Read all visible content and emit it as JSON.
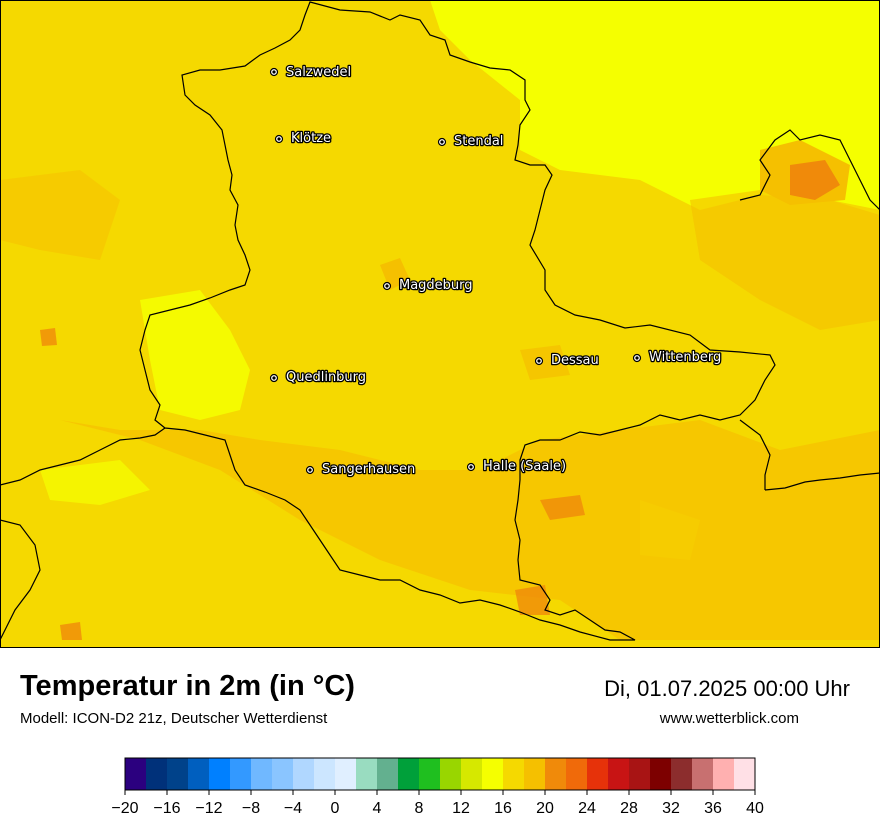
{
  "map": {
    "cities": [
      {
        "id": "salzwedel",
        "name": "Salzwedel"
      },
      {
        "id": "kloetze",
        "name": "Klötze"
      },
      {
        "id": "stendal",
        "name": "Stendal"
      },
      {
        "id": "magdeburg",
        "name": "Magdeburg"
      },
      {
        "id": "dessau",
        "name": "Dessau"
      },
      {
        "id": "wittenberg",
        "name": "Wittenberg"
      },
      {
        "id": "quedlinburg",
        "name": "Quedlinburg"
      },
      {
        "id": "sangerhausen",
        "name": "Sangerhausen"
      },
      {
        "id": "halle",
        "name": "Halle (Saale)"
      }
    ]
  },
  "footer": {
    "title": "Temperatur in 2m (in °C)",
    "model": "Modell: ICON-D2 21z, Deutscher Wetterdienst",
    "datetime": "Di, 01.07.2025 00:00 Uhr",
    "website": "www.wetterblick.com"
  },
  "legend": {
    "ticks": [
      "−20",
      "−16",
      "−12",
      "−8",
      "−4",
      "0",
      "4",
      "8",
      "12",
      "16",
      "20",
      "24",
      "28",
      "32",
      "36",
      "40"
    ],
    "colors": [
      "#2b007f",
      "#00317a",
      "#00428a",
      "#005fbf",
      "#0080ff",
      "#3399ff",
      "#70b8ff",
      "#8ac5ff",
      "#b0d7ff",
      "#cce6ff",
      "#e0efff",
      "#99dcc0",
      "#63b08f",
      "#00a03a",
      "#1fbf1f",
      "#99d600",
      "#d6e800",
      "#f5ff00",
      "#f5d900",
      "#f5c000",
      "#f08a0a",
      "#f06a0a",
      "#e6320a",
      "#c81414",
      "#a81414",
      "#7d0000",
      "#8c2d2d",
      "#c87070",
      "#ffb0b0",
      "#ffe0e6"
    ]
  }
}
